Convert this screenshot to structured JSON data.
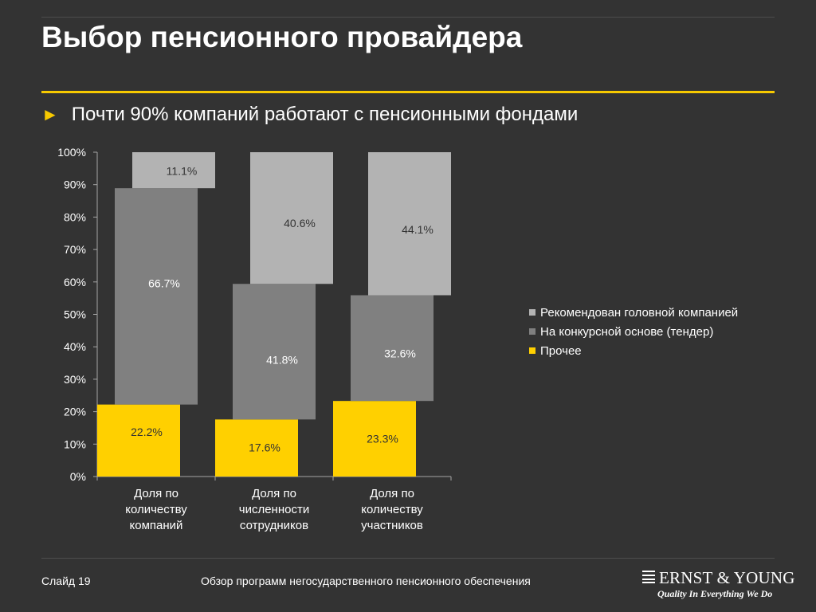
{
  "slide": {
    "title": "Выбор пенсионного провайдера",
    "subtitle": "Почти 90% компаний работают с пенсионными фондами"
  },
  "footer": {
    "slide_number": "Слайд 19",
    "center_text": "Обзор программ негосударственного пенсионного обеспечения"
  },
  "logo": {
    "name": "ERNST & YOUNG",
    "tagline": "Quality In Everything We Do"
  },
  "colors": {
    "background": "#333333",
    "accent": "#f7c900",
    "series_recommended": "#b3b3b3",
    "series_tender": "#808080",
    "series_other": "#ffd000"
  },
  "chart_data": {
    "type": "bar",
    "stacked": true,
    "categories": [
      [
        "Доля по",
        "количеству",
        "компаний"
      ],
      [
        "Доля по",
        "численности",
        "сотрудников"
      ],
      [
        "Доля по",
        "количеству",
        "участников"
      ]
    ],
    "series": [
      {
        "name": "Рекомендован головной компанией",
        "values": [
          11.1,
          40.6,
          44.1
        ],
        "labels": [
          "11.1%",
          "40.6%",
          "44.1%"
        ],
        "color": "#b3b3b3"
      },
      {
        "name": "На конкурсной основе (тендер)",
        "values": [
          66.7,
          41.8,
          32.6
        ],
        "labels": [
          "66.7%",
          "41.8%",
          "32.6%"
        ],
        "color": "#808080"
      },
      {
        "name": "Прочее",
        "values": [
          22.2,
          17.6,
          23.3
        ],
        "labels": [
          "22.2%",
          "17.6%",
          "23.3%"
        ],
        "color": "#ffd000"
      }
    ],
    "stack_order_bottom_to_top": [
      2,
      1,
      0
    ],
    "yticks": [
      "0%",
      "10%",
      "20%",
      "30%",
      "40%",
      "50%",
      "60%",
      "70%",
      "80%",
      "90%",
      "100%"
    ],
    "ylim": [
      0,
      100
    ],
    "legend_position": "right",
    "grid": false
  }
}
